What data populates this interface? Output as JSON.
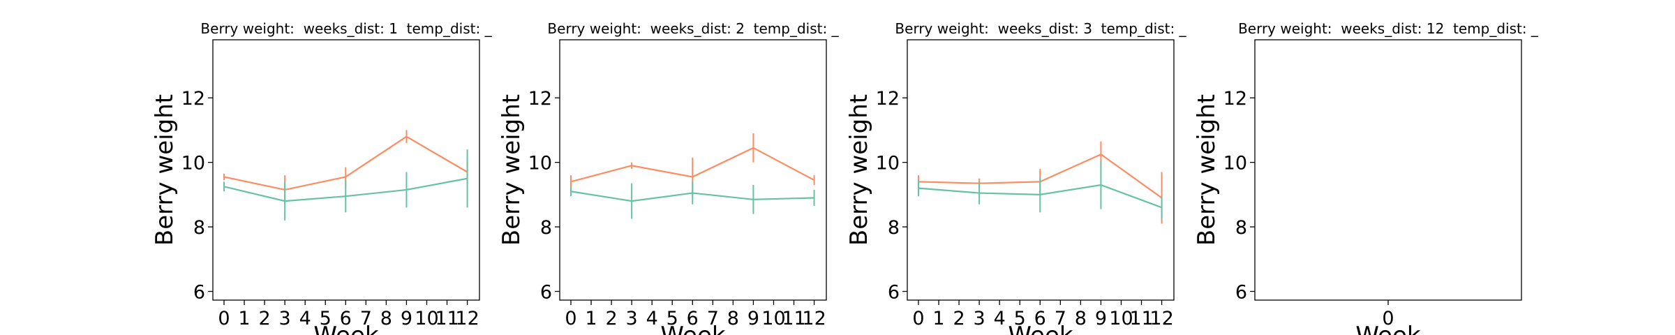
{
  "chart_data": [
    {
      "type": "line",
      "title": "Berry weight:  weeks_dist: 1  temp_dist: _",
      "xlabel": "Week",
      "ylabel": "Berry weight",
      "x": [
        0,
        3,
        6,
        9,
        12
      ],
      "series": [
        {
          "color": "#fc8d62",
          "values": [
            9.55,
            9.15,
            9.55,
            10.8,
            9.7
          ],
          "errors": [
            0.1,
            0.45,
            0.3,
            0.2,
            0.35
          ]
        },
        {
          "color": "#66c2a5",
          "values": [
            9.25,
            8.8,
            8.95,
            9.15,
            9.5
          ],
          "errors": [
            0.15,
            0.6,
            0.5,
            0.55,
            0.9
          ]
        }
      ],
      "xlim": [
        -0.55,
        12.6
      ],
      "xticks": [
        0,
        1,
        2,
        3,
        4,
        5,
        6,
        7,
        8,
        9,
        10,
        11,
        12
      ],
      "ylim": [
        5.73,
        13.8
      ],
      "yticks": [
        6,
        8,
        10,
        12
      ]
    },
    {
      "type": "line",
      "title": "Berry weight:  weeks_dist: 2  temp_dist: _",
      "xlabel": "Week",
      "ylabel": "Berry weight",
      "x": [
        0,
        3,
        6,
        9,
        12
      ],
      "series": [
        {
          "color": "#fc8d62",
          "values": [
            9.4,
            9.9,
            9.55,
            10.45,
            9.45
          ],
          "errors": [
            0.2,
            0.1,
            0.6,
            0.45,
            0.15
          ]
        },
        {
          "color": "#66c2a5",
          "values": [
            9.1,
            8.8,
            9.05,
            8.85,
            8.9
          ],
          "errors": [
            0.15,
            0.55,
            0.35,
            0.45,
            0.25
          ]
        }
      ],
      "xlim": [
        -0.55,
        12.6
      ],
      "xticks": [
        0,
        1,
        2,
        3,
        4,
        5,
        6,
        7,
        8,
        9,
        10,
        11,
        12
      ],
      "ylim": [
        5.73,
        13.8
      ],
      "yticks": [
        6,
        8,
        10,
        12
      ]
    },
    {
      "type": "line",
      "title": "Berry weight:  weeks_dist: 3  temp_dist: _",
      "xlabel": "Week",
      "ylabel": "Berry weight",
      "x": [
        0,
        3,
        6,
        9,
        12
      ],
      "series": [
        {
          "color": "#fc8d62",
          "values": [
            9.4,
            9.35,
            9.4,
            10.25,
            8.9
          ],
          "errors": [
            0.2,
            0.15,
            0.4,
            0.4,
            0.8
          ]
        },
        {
          "color": "#66c2a5",
          "values": [
            9.2,
            9.05,
            9.0,
            9.3,
            8.6
          ],
          "errors": [
            0.25,
            0.35,
            0.55,
            0.75,
            0.35
          ]
        }
      ],
      "xlim": [
        -0.55,
        12.6
      ],
      "xticks": [
        0,
        1,
        2,
        3,
        4,
        5,
        6,
        7,
        8,
        9,
        10,
        11,
        12
      ],
      "ylim": [
        5.73,
        13.8
      ],
      "yticks": [
        6,
        8,
        10,
        12
      ]
    },
    {
      "type": "line",
      "title": "Berry weight:  weeks_dist: 12  temp_dist: _",
      "xlabel": "Week",
      "ylabel": "Berry weight",
      "x": [],
      "series": [],
      "xlim": [
        -1,
        1
      ],
      "xticks": [
        0
      ],
      "ylim": [
        5.73,
        13.8
      ],
      "yticks": [
        6,
        8,
        10,
        12
      ]
    }
  ]
}
